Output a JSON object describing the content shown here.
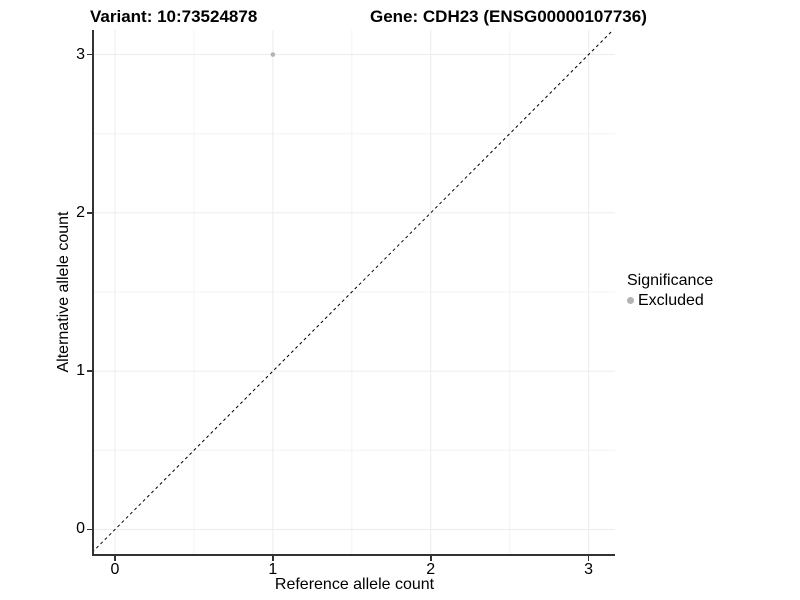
{
  "chart_data": {
    "type": "scatter",
    "titles": {
      "left": "Variant: 10:73524878",
      "right": "Gene: CDH23 (ENSG00000107736)"
    },
    "xlabel": "Reference allele count",
    "ylabel": "Alternative allele count",
    "xlim": [
      -0.133,
      3.167
    ],
    "ylim": [
      -0.155,
      3.155
    ],
    "xticks": [
      0,
      1,
      2,
      3
    ],
    "yticks": [
      0,
      1,
      2,
      3
    ],
    "xticks_minor": [
      0.5,
      1.5,
      2.5
    ],
    "yticks_minor": [
      0.5,
      1.5,
      2.5
    ],
    "grid": "on",
    "series": [
      {
        "name": "Excluded",
        "color": "#b3b3b3",
        "points": [
          {
            "x": 1,
            "y": 3
          }
        ]
      }
    ],
    "reference_line": {
      "style": "dashed",
      "slope": 1,
      "intercept": 0,
      "color": "#000000"
    },
    "legend": {
      "title": "Significance",
      "position": "right",
      "entries": [
        {
          "label": "Excluded",
          "color": "#b3b3b3"
        }
      ]
    },
    "style": {
      "grid_major_color": "#ececec",
      "grid_minor_color": "#f3f3f3",
      "axis_line_color": "#333333",
      "text_color": "#000000",
      "background": "#ffffff"
    }
  }
}
